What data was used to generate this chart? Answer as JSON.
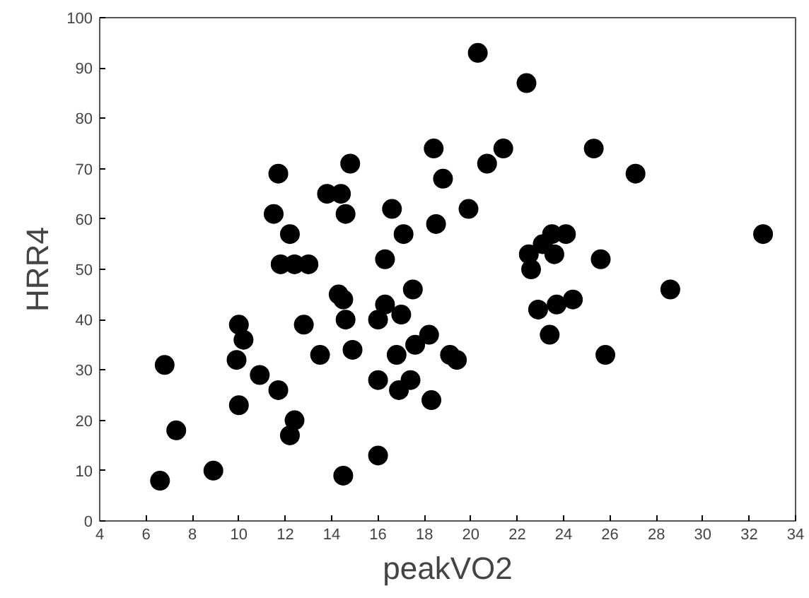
{
  "chart_data": {
    "type": "scatter",
    "xlabel": "peakVO2",
    "ylabel": "HRR4",
    "marker": "circle",
    "grid": false,
    "xlim": [
      4,
      34
    ],
    "ylim": [
      0,
      100
    ],
    "xticks": [
      4,
      6,
      8,
      10,
      12,
      14,
      16,
      18,
      20,
      22,
      24,
      26,
      28,
      30,
      32,
      34
    ],
    "yticks": [
      0,
      10,
      20,
      30,
      40,
      50,
      60,
      70,
      80,
      90,
      100
    ],
    "series": [
      {
        "color": "#000000",
        "x": [
          6.6,
          6.8,
          7.3,
          8.9,
          9.9,
          10.0,
          10.0,
          10.2,
          10.9,
          11.5,
          11.7,
          11.7,
          11.8,
          12.2,
          12.2,
          12.4,
          12.4,
          12.8,
          13.0,
          13.5,
          13.8,
          14.3,
          14.4,
          14.5,
          14.5,
          14.6,
          14.6,
          14.8,
          14.9,
          16.0,
          16.0,
          16.0,
          16.3,
          16.3,
          16.6,
          16.8,
          16.9,
          17.0,
          17.1,
          17.4,
          17.5,
          17.6,
          18.2,
          18.3,
          18.4,
          18.5,
          18.8,
          19.1,
          19.4,
          19.9,
          20.3,
          20.7,
          21.4,
          22.4,
          22.5,
          22.6,
          22.9,
          23.1,
          23.4,
          23.5,
          23.6,
          23.7,
          24.1,
          24.4,
          25.3,
          25.6,
          25.8,
          27.1,
          28.6,
          32.6
        ],
        "values": [
          8,
          31,
          18,
          10,
          32,
          23,
          39,
          36,
          29,
          61,
          26,
          69,
          51,
          17,
          57,
          20,
          51,
          39,
          51,
          33,
          65,
          45,
          65,
          44,
          9,
          61,
          40,
          71,
          34,
          40,
          28,
          13,
          43,
          52,
          62,
          33,
          26,
          41,
          57,
          28,
          46,
          35,
          37,
          24,
          74,
          59,
          68,
          33,
          32,
          62,
          93,
          71,
          74,
          87,
          53,
          50,
          42,
          55,
          37,
          57,
          53,
          43,
          57,
          44,
          74,
          52,
          33,
          69,
          46,
          57
        ]
      }
    ]
  }
}
